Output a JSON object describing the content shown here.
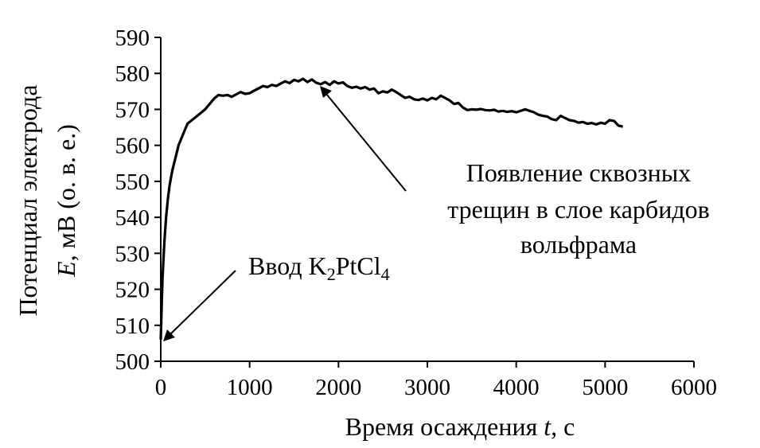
{
  "chart_data": {
    "type": "line",
    "title": "",
    "xlabel": "Время осаждения ",
    "xlabel_var": "t",
    "xlabel_unit": ", с",
    "ylabel_line1": "Потенциал электрода",
    "ylabel_var": "E",
    "ylabel_line2": ", мВ (о. в. е.)",
    "xlim": [
      0,
      6000
    ],
    "ylim": [
      500,
      590
    ],
    "xticks": [
      0,
      1000,
      2000,
      3000,
      4000,
      5000,
      6000
    ],
    "yticks": [
      500,
      510,
      520,
      530,
      540,
      550,
      560,
      570,
      580,
      590
    ],
    "grid": false,
    "legend": "none",
    "series": [
      {
        "x": [
          0,
          10,
          20,
          40,
          60,
          80,
          100,
          130,
          160,
          200,
          250,
          300,
          350,
          400,
          450,
          500,
          550,
          600,
          650,
          700,
          750,
          800,
          850,
          900,
          950,
          1000,
          1050,
          1100,
          1150,
          1200,
          1250,
          1300,
          1350,
          1400,
          1450,
          1500,
          1550,
          1600,
          1650,
          1700,
          1750,
          1800,
          1850,
          1900,
          1950,
          2000,
          2050,
          2100,
          2150,
          2200,
          2250,
          2300,
          2350,
          2400,
          2450,
          2500,
          2550,
          2600,
          2650,
          2700,
          2750,
          2800,
          2850,
          2900,
          2950,
          3000,
          3050,
          3100,
          3150,
          3200,
          3250,
          3300,
          3350,
          3400,
          3450,
          3500,
          3550,
          3600,
          3650,
          3700,
          3750,
          3800,
          3850,
          3900,
          3950,
          4000,
          4050,
          4100,
          4150,
          4200,
          4250,
          4300,
          4350,
          4400,
          4450,
          4500,
          4550,
          4600,
          4650,
          4700,
          4750,
          4800,
          4850,
          4900,
          4950,
          5000,
          5050,
          5100,
          5150,
          5200
        ],
        "y": [
          506,
          515,
          523,
          533,
          540,
          545,
          549,
          553,
          556,
          560,
          563,
          566,
          567,
          568,
          569,
          570,
          571.5,
          573,
          574,
          573.8,
          574,
          573.5,
          574.2,
          574.8,
          574.3,
          574.5,
          575.2,
          575.8,
          576.5,
          576.2,
          576.8,
          576.5,
          577.2,
          577.8,
          577.3,
          578.2,
          577.8,
          578.5,
          577.6,
          578.3,
          577.4,
          577,
          577.6,
          576.8,
          577.8,
          577.2,
          577.5,
          576.5,
          576,
          576.3,
          575.8,
          576.2,
          575.5,
          575.8,
          574.5,
          575,
          574.7,
          575.5,
          574.8,
          574,
          573.2,
          573.5,
          572.8,
          572.6,
          573,
          572.5,
          573.2,
          572.8,
          573.8,
          573.2,
          572.5,
          571.5,
          571.8,
          570.5,
          569.8,
          570,
          569.9,
          570.1,
          569.8,
          569.7,
          569.9,
          569.4,
          569.6,
          569.3,
          569.5,
          569.2,
          569.6,
          570,
          569.6,
          569.2,
          568.5,
          568.2,
          568,
          567.3,
          567,
          568.2,
          567.6,
          567,
          566.8,
          566.3,
          566.5,
          566,
          566.2,
          565.8,
          566.3,
          566,
          567,
          566.8,
          565.5,
          565.2
        ]
      }
    ],
    "annotations": [
      {
        "text_before": "Ввод K",
        "sub1": "2",
        "text_mid": "PtCl",
        "sub2": "4",
        "point_x": 0,
        "point_y": 506
      },
      {
        "lines": [
          "Появление сквозных",
          "трещин в слое карбидов",
          "вольфрама"
        ],
        "point_x": 1750,
        "point_y": 577.5
      }
    ]
  }
}
